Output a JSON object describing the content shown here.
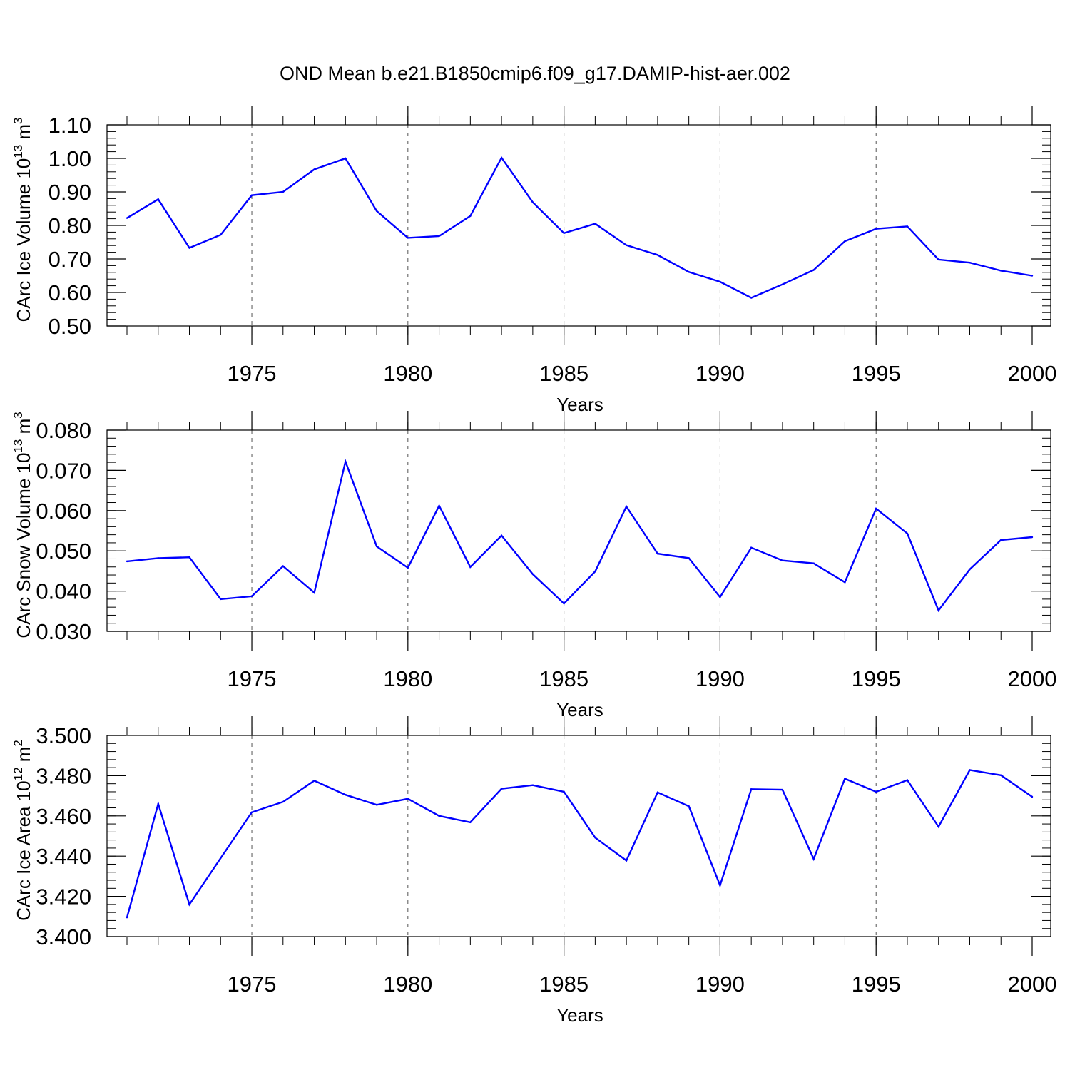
{
  "title": "OND Mean b.e21.B1850cmip6.f09_g17.DAMIP-hist-aer.002",
  "colors": {
    "series": "#0000ff",
    "axis": "#000000",
    "grid": "#555555"
  },
  "chart_data": [
    {
      "type": "line",
      "ylabel_main": "CArc Ice Volume 10",
      "ylabel_exp": "13",
      "ylabel_unit": "m",
      "ylabel_unit_exp": "3",
      "xlabel": "Years",
      "xlim": [
        1971,
        2000
      ],
      "ylim": [
        0.5,
        1.1
      ],
      "y_major_ticks": [
        0.5,
        0.6,
        0.7,
        0.8,
        0.9,
        1.0,
        1.1
      ],
      "y_tick_labels": [
        "0.50",
        "0.60",
        "0.70",
        "0.80",
        "0.90",
        "1.00",
        "1.10"
      ],
      "y_minor_step": 0.02,
      "x_major_ticks": [
        1975,
        1980,
        1985,
        1990,
        1995,
        2000
      ],
      "x_tick_labels": [
        "1975",
        "1980",
        "1985",
        "1990",
        "1995",
        "2000"
      ],
      "grid": "vertical dashed at major x ticks",
      "x": [
        1971,
        1972,
        1973,
        1974,
        1975,
        1976,
        1977,
        1978,
        1979,
        1980,
        1981,
        1982,
        1983,
        1984,
        1985,
        1986,
        1987,
        1988,
        1989,
        1990,
        1991,
        1992,
        1993,
        1994,
        1995,
        1996,
        1997,
        1998,
        1999,
        2000
      ],
      "values": [
        0.822,
        0.878,
        0.733,
        0.772,
        0.89,
        0.9,
        0.967,
        1.0,
        0.843,
        0.763,
        0.768,
        0.828,
        1.002,
        0.869,
        0.777,
        0.805,
        0.741,
        0.712,
        0.661,
        0.632,
        0.584,
        0.624,
        0.667,
        0.753,
        0.79,
        0.797,
        0.698,
        0.689,
        0.665,
        0.65
      ]
    },
    {
      "type": "line",
      "ylabel_main": "CArc Snow Volume 10",
      "ylabel_exp": "13",
      "ylabel_unit": "m",
      "ylabel_unit_exp": "3",
      "xlabel": "Years",
      "xlim": [
        1971,
        2000
      ],
      "ylim": [
        0.03,
        0.08
      ],
      "y_major_ticks": [
        0.03,
        0.04,
        0.05,
        0.06,
        0.07,
        0.08
      ],
      "y_tick_labels": [
        "0.030",
        "0.040",
        "0.050",
        "0.060",
        "0.070",
        "0.080"
      ],
      "y_minor_step": 0.002,
      "x_major_ticks": [
        1975,
        1980,
        1985,
        1990,
        1995,
        2000
      ],
      "x_tick_labels": [
        "1975",
        "1980",
        "1985",
        "1990",
        "1995",
        "2000"
      ],
      "grid": "vertical dashed at major x ticks",
      "x": [
        1971,
        1972,
        1973,
        1974,
        1975,
        1976,
        1977,
        1978,
        1979,
        1980,
        1981,
        1982,
        1983,
        1984,
        1985,
        1986,
        1987,
        1988,
        1989,
        1990,
        1991,
        1992,
        1993,
        1994,
        1995,
        1996,
        1997,
        1998,
        1999,
        2000
      ],
      "values": [
        0.0474,
        0.0482,
        0.0484,
        0.038,
        0.0387,
        0.0462,
        0.0396,
        0.0722,
        0.0511,
        0.0458,
        0.0612,
        0.046,
        0.0538,
        0.0442,
        0.0369,
        0.0449,
        0.061,
        0.0493,
        0.0482,
        0.0385,
        0.0508,
        0.0476,
        0.0469,
        0.0422,
        0.0605,
        0.0543,
        0.0352,
        0.0454,
        0.0527,
        0.0534
      ]
    },
    {
      "type": "line",
      "ylabel_main": "CArc Ice Area 10",
      "ylabel_exp": "12",
      "ylabel_unit": "m",
      "ylabel_unit_exp": "2",
      "xlabel": "Years",
      "xlim": [
        1971,
        2000
      ],
      "ylim": [
        3.4,
        3.5
      ],
      "y_major_ticks": [
        3.4,
        3.42,
        3.44,
        3.46,
        3.48,
        3.5
      ],
      "y_tick_labels": [
        "3.400",
        "3.420",
        "3.440",
        "3.460",
        "3.480",
        "3.500"
      ],
      "y_minor_step": 0.004,
      "x_major_ticks": [
        1975,
        1980,
        1985,
        1990,
        1995,
        2000
      ],
      "x_tick_labels": [
        "1975",
        "1980",
        "1985",
        "1990",
        "1995",
        "2000"
      ],
      "grid": "vertical dashed at major x ticks",
      "x": [
        1971,
        1972,
        1973,
        1974,
        1975,
        1976,
        1977,
        1978,
        1979,
        1980,
        1981,
        1982,
        1983,
        1984,
        1985,
        1986,
        1987,
        1988,
        1989,
        1990,
        1991,
        1992,
        1993,
        1994,
        1995,
        1996,
        1997,
        1998,
        1999,
        2000
      ],
      "values": [
        3.4095,
        3.466,
        3.416,
        3.439,
        3.4618,
        3.467,
        3.4775,
        3.4705,
        3.4655,
        3.4685,
        3.46,
        3.4568,
        3.4735,
        3.4753,
        3.472,
        3.4492,
        3.4378,
        3.4717,
        3.4648,
        3.4255,
        3.4733,
        3.473,
        3.4386,
        3.4785,
        3.472,
        3.4778,
        3.4546,
        3.4828,
        3.4802,
        3.4695
      ]
    }
  ]
}
